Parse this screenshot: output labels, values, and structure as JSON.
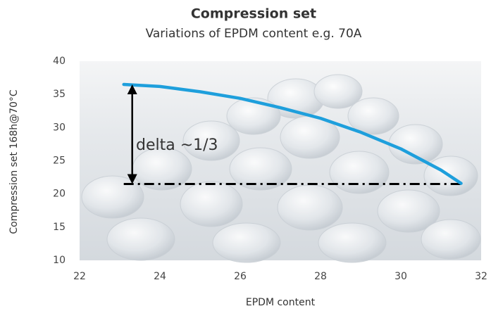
{
  "chart_data": {
    "type": "line",
    "title": "Compression set",
    "subtitle": "Variations of EPDM content e.g. 70A",
    "x_label": "EPDM content",
    "y_label": "Compression set 168h@70°C",
    "x": [
      23.1,
      24,
      25,
      26,
      27,
      28,
      29,
      30,
      31,
      31.5
    ],
    "series": [
      {
        "color": "#1e9fdc",
        "values": [
          36.5,
          36.2,
          35.4,
          34.4,
          33.0,
          31.4,
          29.3,
          26.8,
          23.6,
          21.6
        ]
      }
    ],
    "reference_line": {
      "x": [
        23.1,
        31.5
      ],
      "y": 21.5,
      "color": "#000000"
    },
    "annotation": "delta ~1/3",
    "xlim": [
      22,
      32
    ],
    "xticks": [
      22,
      24,
      26,
      28,
      30,
      32
    ],
    "ylim": [
      10,
      40
    ],
    "yticks": [
      10,
      15,
      20,
      25,
      30,
      35,
      40
    ]
  }
}
